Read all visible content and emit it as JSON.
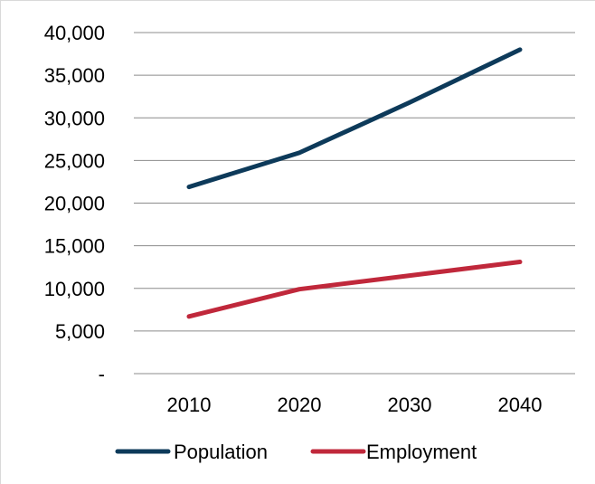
{
  "chart_data": {
    "type": "line",
    "title": "",
    "xlabel": "",
    "ylabel": "",
    "categories": [
      "2010",
      "2020",
      "2030",
      "2040"
    ],
    "series": [
      {
        "name": "Population",
        "values": [
          21900,
          25900,
          31800,
          38000
        ],
        "color": "#0d3a5a"
      },
      {
        "name": "Employment",
        "values": [
          6700,
          9900,
          11500,
          13100
        ],
        "color": "#c0283b"
      }
    ],
    "ylim": [
      0,
      40000
    ],
    "yticks": [
      {
        "value": 0,
        "label": "-"
      },
      {
        "value": 5000,
        "label": "5,000"
      },
      {
        "value": 10000,
        "label": "10,000"
      },
      {
        "value": 15000,
        "label": "15,000"
      },
      {
        "value": 20000,
        "label": "20,000"
      },
      {
        "value": 25000,
        "label": "25,000"
      },
      {
        "value": 30000,
        "label": "30,000"
      },
      {
        "value": 35000,
        "label": "35,000"
      },
      {
        "value": 40000,
        "label": "40,000"
      }
    ],
    "grid": true,
    "legend": "bottom"
  }
}
